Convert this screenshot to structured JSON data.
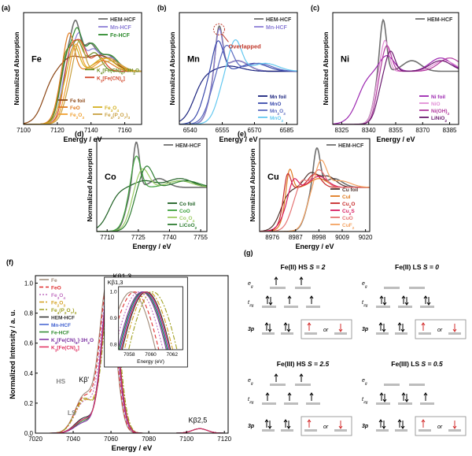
{
  "chart_data": [
    {
      "id": "a",
      "type": "line",
      "panel_label": "(a)",
      "element": "Fe",
      "xlabel": "Energy / eV",
      "ylabel": "Normalized Absorption",
      "xlim": [
        7100,
        7170
      ],
      "ylim": [
        0,
        2
      ],
      "xticks": [
        7100,
        7120,
        7140,
        7160
      ],
      "legend_top": [
        "HEM-HCF",
        "Mn-HCF",
        "Fe-HCF"
      ],
      "legend_ref": [
        "K4[Fe(CN)6]·3H2O",
        "K3[Fe(CN)6]"
      ],
      "legend_bottom": [
        "Fe foil",
        "FeO",
        "Fe2O3",
        "Fe3O4",
        "Fe4(P2O7)3"
      ],
      "series": [
        {
          "name": "HEM-HCF",
          "color": "#6f6f6f",
          "peaks": [
            [
              7126,
              0.45,
              4
            ],
            [
              7131,
              0.7,
              2.5
            ],
            [
              7139,
              0.5,
              4
            ],
            [
              7150,
              0.3,
              5
            ]
          ],
          "edge": 7122,
          "ew": 2.2
        },
        {
          "name": "Mn-HCF",
          "color": "#8d7fd6",
          "peaks": [
            [
              7127,
              0.4,
              4
            ],
            [
              7133,
              0.55,
              2.5
            ],
            [
              7141,
              0.4,
              4
            ],
            [
              7152,
              0.25,
              5
            ]
          ],
          "edge": 7123,
          "ew": 2.2
        },
        {
          "name": "Fe-HCF",
          "color": "#2e8b2e",
          "peaks": [
            [
              7126,
              0.5,
              4
            ],
            [
              7132,
              0.6,
              2.5
            ],
            [
              7140,
              0.5,
              4
            ],
            [
              7151,
              0.3,
              5
            ]
          ],
          "edge": 7122,
          "ew": 2.2
        },
        {
          "name": "K4[Fe(CN)6]·3H2O",
          "color": "#6b8e23",
          "peaks": [
            [
              7125,
              0.45,
              3
            ],
            [
              7132,
              0.55,
              3
            ],
            [
              7142,
              0.35,
              4
            ]
          ],
          "edge": 7121,
          "ew": 2.0
        },
        {
          "name": "K3[Fe(CN)6]",
          "color": "#d2462a",
          "peaks": [
            [
              7128,
              0.5,
              3
            ],
            [
              7134,
              0.5,
              3
            ],
            [
              7144,
              0.3,
              4
            ]
          ],
          "edge": 7123,
          "ew": 2.0
        },
        {
          "name": "Fe foil",
          "color": "#8b4513",
          "peaks": [
            [
              7128,
              0.25,
              6
            ],
            [
              7145,
              0.3,
              8
            ]
          ],
          "edge": 7112,
          "ew": 3.0
        },
        {
          "name": "FeO",
          "color": "#e07b20",
          "peaks": [
            [
              7127,
              0.75,
              3
            ],
            [
              7147,
              0.2,
              6
            ]
          ],
          "edge": 7120,
          "ew": 2.0
        },
        {
          "name": "Fe2O3",
          "color": "#f0a030",
          "peaks": [
            [
              7131,
              0.55,
              3
            ],
            [
              7150,
              0.25,
              6
            ]
          ],
          "edge": 7124,
          "ew": 2.2
        },
        {
          "name": "Fe3O4",
          "color": "#d4b020",
          "peaks": [
            [
              7130,
              0.5,
              3
            ],
            [
              7148,
              0.25,
              6
            ]
          ],
          "edge": 7122,
          "ew": 2.2
        },
        {
          "name": "Fe4(P2O7)3",
          "color": "#c8a040",
          "peaks": [
            [
              7133,
              0.6,
              3
            ],
            [
              7152,
              0.2,
              6
            ]
          ],
          "edge": 7125,
          "ew": 2.2
        }
      ]
    },
    {
      "id": "b",
      "type": "line",
      "panel_label": "(b)",
      "element": "Mn",
      "xlabel": "Energy / eV",
      "ylabel": "Normalized Absorption",
      "xlim": [
        6535,
        6590
      ],
      "ylim": [
        0,
        2
      ],
      "xticks": [
        6540,
        6555,
        6570,
        6585
      ],
      "legend_top": [
        "HEM-HCF",
        "Mn-HCF"
      ],
      "legend_bottom": [
        "Mn foil",
        "MnO",
        "Mn2O3",
        "MnO2"
      ],
      "annotation": "Overlapped",
      "series": [
        {
          "name": "HEM-HCF",
          "color": "#6f6f6f",
          "peaks": [
            [
              6553.5,
              0.85,
              1.6
            ],
            [
              6562,
              0.2,
              5
            ]
          ],
          "edge": 6549,
          "ew": 1.5
        },
        {
          "name": "Mn-HCF",
          "color": "#8d7fd6",
          "peaks": [
            [
              6553.5,
              0.8,
              1.6
            ],
            [
              6562,
              0.2,
              5
            ]
          ],
          "edge": 6549,
          "ew": 1.5
        },
        {
          "name": "Mn foil",
          "color": "#1a237e",
          "peaks": [
            [
              6558,
              0.1,
              6
            ]
          ],
          "edge": 6542,
          "ew": 2.5
        },
        {
          "name": "MnO",
          "color": "#3949ab",
          "peaks": [
            [
              6553,
              0.6,
              2.5
            ],
            [
              6570,
              0.15,
              6
            ]
          ],
          "edge": 6546,
          "ew": 2.0
        },
        {
          "name": "Mn2O3",
          "color": "#5c6bc0",
          "peaks": [
            [
              6557,
              0.5,
              3
            ],
            [
              6572,
              0.15,
              6
            ]
          ],
          "edge": 6549,
          "ew": 2.0
        },
        {
          "name": "MnO2",
          "color": "#64c8f0",
          "peaks": [
            [
              6561,
              0.6,
              3
            ],
            [
              6575,
              0.15,
              6
            ]
          ],
          "edge": 6553,
          "ew": 2.0
        }
      ]
    },
    {
      "id": "c",
      "type": "line",
      "panel_label": "(c)",
      "element": "Ni",
      "xlabel": "Energy / eV",
      "ylabel": "Normalized Absorption",
      "xlim": [
        8320,
        8390
      ],
      "ylim": [
        0,
        2
      ],
      "xticks": [
        8325,
        8340,
        8355,
        8370,
        8385
      ],
      "legend_top": [
        "HEM-HCF"
      ],
      "legend_bottom": [
        "Ni foil",
        "NiO",
        "Ni(OH)2",
        "LiNiO2"
      ],
      "series": [
        {
          "name": "HEM-HCF",
          "color": "#6f6f6f",
          "peaks": [
            [
              8348,
              1.0,
              1.8
            ],
            [
              8364,
              0.2,
              5
            ]
          ],
          "edge": 8343,
          "ew": 1.5
        },
        {
          "name": "Ni foil",
          "color": "#9c27b0",
          "peaks": [
            [
              8350,
              0.3,
              4
            ],
            [
              8380,
              0.25,
              6
            ]
          ],
          "edge": 8334,
          "ew": 3.0
        },
        {
          "name": "NiO",
          "color": "#e28fd6",
          "peaks": [
            [
              8349,
              0.6,
              2.2
            ],
            [
              8382,
              0.2,
              6
            ]
          ],
          "edge": 8343,
          "ew": 1.5
        },
        {
          "name": "Ni(OH)2",
          "color": "#b23a9e",
          "peaks": [
            [
              8350,
              0.5,
              2.5
            ],
            [
              8385,
              0.25,
              6
            ]
          ],
          "edge": 8344,
          "ew": 1.5
        },
        {
          "name": "LiNiO2",
          "color": "#6a1b6e",
          "peaks": [
            [
              8352,
              0.4,
              2.5
            ],
            [
              8380,
              0.2,
              6
            ]
          ],
          "edge": 8345,
          "ew": 1.8
        }
      ]
    },
    {
      "id": "d",
      "type": "line",
      "panel_label": "(d)",
      "element": "Co",
      "xlabel": "Energy / eV",
      "ylabel": "Normalized Absorption",
      "xlim": [
        7705,
        7758
      ],
      "ylim": [
        0,
        2
      ],
      "xticks": [
        7710,
        7725,
        7740,
        7755
      ],
      "legend_top": [
        "HEM-HCF"
      ],
      "legend_bottom": [
        "Co foil",
        "CoO",
        "Co3O4",
        "LiCoO2"
      ],
      "series": [
        {
          "name": "HEM-HCF",
          "color": "#6f6f6f",
          "peaks": [
            [
              7724,
              1.05,
              1.5
            ],
            [
              7735,
              0.2,
              4
            ]
          ],
          "edge": 7719,
          "ew": 1.4
        },
        {
          "name": "Co foil",
          "color": "#1b5e20",
          "peaks": [
            [
              7728,
              0.15,
              5
            ],
            [
              7745,
              0.2,
              6
            ]
          ],
          "edge": 7711,
          "ew": 2.5
        },
        {
          "name": "CoO",
          "color": "#3aa03a",
          "peaks": [
            [
              7724,
              0.75,
              2.2
            ],
            [
              7745,
              0.15,
              6
            ]
          ],
          "edge": 7719,
          "ew": 1.6
        },
        {
          "name": "Co3O4",
          "color": "#9ccc65",
          "peaks": [
            [
              7727,
              0.45,
              3
            ],
            [
              7745,
              0.15,
              6
            ]
          ],
          "edge": 7721,
          "ew": 1.8
        },
        {
          "name": "LiCoO2",
          "color": "#2e7d32",
          "peaks": [
            [
              7729,
              0.5,
              3
            ],
            [
              7748,
              0.15,
              6
            ]
          ],
          "edge": 7722,
          "ew": 1.8
        }
      ]
    },
    {
      "id": "e",
      "type": "line",
      "panel_label": "(e)",
      "element": "Cu",
      "xlabel": "Energy / eV",
      "ylabel": "Normalized Absorption",
      "xlim": [
        8970,
        9022
      ],
      "ylim": [
        0,
        2
      ],
      "xticks": [
        8976,
        8987,
        8998,
        9009,
        9020
      ],
      "legend_top": [
        "HEM-HCF"
      ],
      "legend_bottom": [
        "Cu foil",
        "CuI",
        "Cu2O",
        "Cu2S",
        "CuO",
        "CuF2"
      ],
      "series": [
        {
          "name": "HEM-HCF",
          "color": "#6f6f6f",
          "peaks": [
            [
              8997,
              0.9,
              1.6
            ],
            [
              9005,
              0.2,
              4
            ]
          ],
          "edge": 8992,
          "ew": 1.5
        },
        {
          "name": "Cu foil",
          "color": "#4e342e",
          "peaks": [
            [
              8994,
              0.3,
              3
            ],
            [
              9002,
              0.25,
              4
            ]
          ],
          "edge": 8980,
          "ew": 2.0
        },
        {
          "name": "CuI",
          "color": "#e07b20",
          "peaks": [
            [
              8984,
              0.6,
              1.5
            ],
            [
              8998,
              0.2,
              4
            ]
          ],
          "edge": 8982,
          "ew": 1.5
        },
        {
          "name": "Cu2O",
          "color": "#c62828",
          "peaks": [
            [
              8983,
              0.5,
              1.5
            ],
            [
              8996,
              0.3,
              3
            ]
          ],
          "edge": 8981,
          "ew": 1.5
        },
        {
          "name": "Cu2S",
          "color": "#d81b60",
          "peaks": [
            [
              8986,
              0.3,
              2
            ],
            [
              8998,
              0.25,
              4
            ]
          ],
          "edge": 8982,
          "ew": 2.0
        },
        {
          "name": "CuO",
          "color": "#e57373",
          "peaks": [
            [
              8990,
              0.2,
              2
            ],
            [
              8998,
              0.4,
              3
            ]
          ],
          "edge": 8985,
          "ew": 1.8
        },
        {
          "name": "CuF2",
          "color": "#f4a261",
          "peaks": [
            [
              8999,
              0.6,
              2.5
            ],
            [
              9008,
              0.15,
              5
            ]
          ],
          "edge": 8992,
          "ew": 1.6
        }
      ]
    },
    {
      "id": "f",
      "type": "line",
      "panel_label": "(f)",
      "xlabel": "Energy / eV",
      "ylabel": "Normalized Intensity / a. u.",
      "xlim": [
        7020,
        7122
      ],
      "ylim": [
        0,
        1.05
      ],
      "xticks": [
        7020,
        7040,
        7060,
        7080,
        7100,
        7120
      ],
      "yticks": [
        0.0,
        0.2,
        0.4,
        0.6,
        0.8,
        1.0
      ],
      "annotations": {
        "kb13": "Kβ1,3",
        "kbp": "Kβ'",
        "hs": "HS",
        "ls": "LS",
        "kb25": "Kβ2,5"
      },
      "inset": {
        "title": "Kβ1,3",
        "xlabel": "Energy (eV)",
        "xlim": [
          7057,
          7063
        ],
        "ylim": [
          0.78,
          1.02
        ],
        "xticks": [
          7058,
          7060,
          7062
        ],
        "yticks": [
          0.8,
          0.9,
          1.0
        ]
      },
      "series": [
        {
          "name": "Fe",
          "color": "#a08a78",
          "dash": "",
          "center": 7058.2,
          "kbp": 0.25
        },
        {
          "name": "FeO",
          "color": "#e03030",
          "dash": "5,3",
          "center": 7058.5,
          "kbp": 0.24
        },
        {
          "name": "Fe3O4",
          "color": "#c070c0",
          "dash": "2,2",
          "center": 7058.9,
          "kbp": 0.21
        },
        {
          "name": "Fe2O3",
          "color": "#d4a020",
          "dash": "6,2,2,2",
          "center": 7059.8,
          "kbp": 0.22
        },
        {
          "name": "Fe4(P2O7)3",
          "color": "#a0a020",
          "dash": "6,2,2,2",
          "center": 7060.2,
          "kbp": 0.23
        },
        {
          "name": "HEM-HCF",
          "color": "#303030",
          "dash": "",
          "center": 7059.6,
          "kbp": 0.1
        },
        {
          "name": "Mn-HCF",
          "color": "#4060d0",
          "dash": "",
          "center": 7059.4,
          "kbp": 0.09
        },
        {
          "name": "Fe-HCF",
          "color": "#2e8b2e",
          "dash": "",
          "center": 7059.3,
          "kbp": 0.08
        },
        {
          "name": "K4[Fe(CN)6]·3H2O",
          "color": "#7a2ea0",
          "dash": "",
          "center": 7059.2,
          "kbp": 0.07
        },
        {
          "name": "K3[Fe(CN)6]",
          "color": "#e03060",
          "dash": "",
          "center": 7059.5,
          "kbp": 0.09
        }
      ]
    },
    {
      "id": "g",
      "type": "diagram",
      "panel_label": "(g)",
      "boxes": [
        {
          "title_a": "Fe(II) HS ",
          "title_b": "S = 2",
          "eg": [
            1,
            1
          ],
          "t2g": [
            2,
            1,
            1
          ],
          "p3": [
            2,
            2
          ],
          "or": "or"
        },
        {
          "title_a": "Fe(II) LS ",
          "title_b": "S = 0",
          "eg": [
            0,
            0
          ],
          "t2g": [
            2,
            2,
            2
          ],
          "p3": [
            2,
            2
          ],
          "or": "or"
        },
        {
          "title_a": "Fe(III) HS ",
          "title_b": "S = 2.5",
          "eg": [
            1,
            1
          ],
          "t2g": [
            1,
            1,
            1
          ],
          "p3": [
            2,
            2
          ],
          "or": "or"
        },
        {
          "title_a": "Fe(III) LS ",
          "title_b": "S = 0.5",
          "eg": [
            0,
            0
          ],
          "t2g": [
            2,
            2,
            1
          ],
          "p3": [
            2,
            2
          ],
          "or": "or"
        }
      ],
      "labels": {
        "eg": "eg",
        "t2g": "t2g",
        "p3": "3p"
      }
    }
  ]
}
